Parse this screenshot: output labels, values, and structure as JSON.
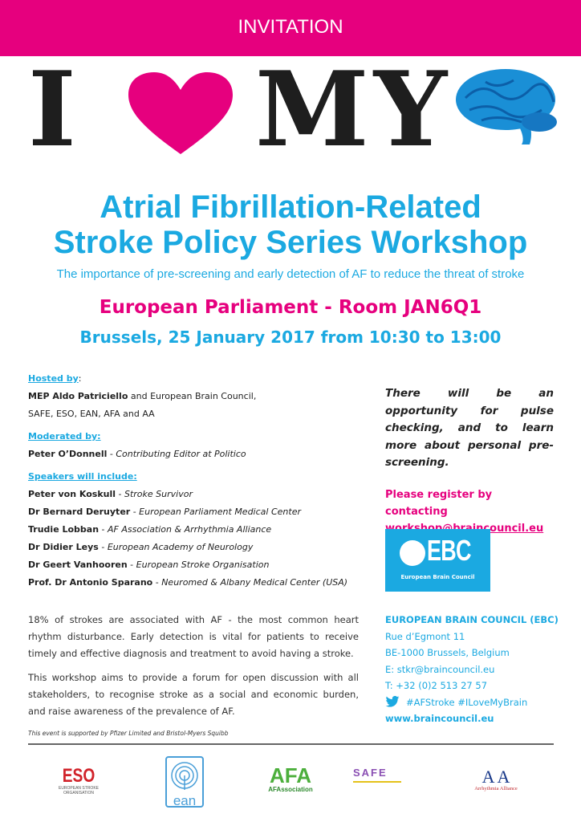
{
  "banner": "INVITATION",
  "hero": {
    "i": "I",
    "my": "MY",
    "heart_color": "#e6007e",
    "brain_color": "#1a8fd6"
  },
  "title": {
    "line1": "Atrial Fibrillation-Related",
    "line2": "Stroke Policy Series Workshop"
  },
  "subtitle": "The importance of pre-screening and early detection of AF to reduce the threat of stroke",
  "venue": "European Parliament - Room JAN6Q1",
  "date": "Brussels, 25 January 2017 from 10:30 to 13:00",
  "hosted": {
    "heading": "Hosted by",
    "colon": ":",
    "name": "MEP Aldo Patriciello",
    "rest": " and European Brain Council,",
    "line2": "SAFE, ESO, EAN, AFA and AA"
  },
  "moderated": {
    "heading": "Moderated by:",
    "name": "Peter O’Donnell",
    "role": "Contributing Editor at Politico"
  },
  "speakers": {
    "heading": "Speakers will include:",
    "items": [
      {
        "name": "Peter von Koskull",
        "role": "Stroke Survivor"
      },
      {
        "name": "Dr Bernard Deruyter",
        "role": "European Parliament Medical Center"
      },
      {
        "name": "Trudie Lobban",
        "role": "AF Association & Arrhythmia Alliance"
      },
      {
        "name": "Dr Didier Leys",
        "role": "European Academy of Neurology"
      },
      {
        "name": "Dr Geert Vanhooren",
        "role": "European Stroke Organisation"
      },
      {
        "name": "Prof. Dr Antonio Sparano",
        "role": "Neuromed & Albany Medical Center (USA)"
      }
    ]
  },
  "sep": " - ",
  "para1": "18% of strokes are associated with AF - the most common heart rhythm disturbance. Early detection is vital for patients to receive timely and effective diagnosis and treatment to avoid having a stroke.",
  "para2": "This workshop aims to provide a forum for open discussion with all stakeholders, to recognise stroke as a social and economic burden, and raise awareness of the prevalence of AF.",
  "opportunity": "There will be an opportunity for pulse checking, and to learn more about personal pre-screening.",
  "register": {
    "text": "Please register by contacting",
    "email": "workshop@braincouncil.eu"
  },
  "ebc_logo": {
    "letters": "EBC",
    "name": "European Brain Council"
  },
  "contact": {
    "org": "EUROPEAN BRAIN COUNCIL (EBC)",
    "street": "Rue d’Egmont 11",
    "city": "BE-1000 Brussels, Belgium",
    "email": "E: stkr@braincouncil.eu",
    "phone": "T: +32 (0)2 513 27 57",
    "twitter": "#AFStroke #ILoveMyBrain",
    "web": "www.braincouncil.eu"
  },
  "support_note": "This event is supported by Pfizer Limited and Bristol-Myers Squibb",
  "logos": {
    "eso": "ESO",
    "eso_sub": "EUROPEAN STROKE ORGANISATION",
    "ean": "ean",
    "afa": "AFA",
    "afa_sub": "AFAssociation",
    "safe": "SAFE",
    "aa": "A A",
    "aa_sub": "Arrhythmia Alliance"
  },
  "colors": {
    "pink": "#e6007e",
    "cyan": "#1ba9e1"
  }
}
